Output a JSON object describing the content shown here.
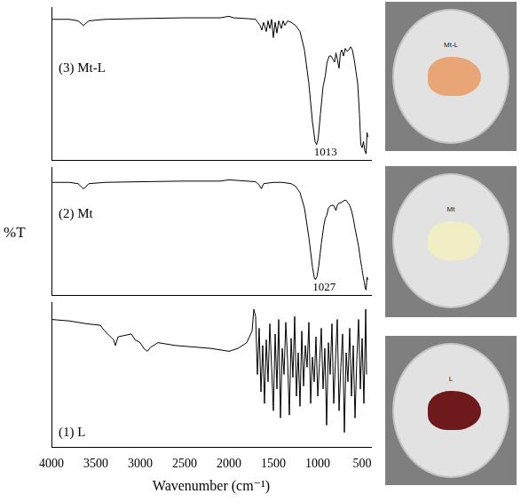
{
  "chart_data": [
    {
      "type": "line",
      "tick_labels": false,
      "grid": false,
      "xlim": [
        4000,
        400
      ],
      "ylim": [
        0,
        100
      ],
      "series": [
        {
          "name": "(3) Mt-L",
          "color": "#000000",
          "x": [
            4000,
            3800,
            3700,
            3640,
            3620,
            3580,
            3400,
            3000,
            2500,
            2100,
            2000,
            1950,
            1800,
            1700,
            1650,
            1630,
            1610,
            1580,
            1560,
            1540,
            1520,
            1500,
            1480,
            1460,
            1440,
            1410,
            1390,
            1370,
            1340,
            1300,
            1250,
            1200,
            1150,
            1100,
            1060,
            1030,
            1013,
            995,
            970,
            940,
            915,
            895,
            870,
            850,
            830,
            810,
            795,
            780,
            760,
            745,
            730,
            710,
            690,
            670,
            650,
            630,
            610,
            590,
            570,
            550,
            530,
            515,
            500,
            485,
            470,
            455,
            445,
            435
          ],
          "values": [
            92,
            92,
            91,
            88,
            89,
            91,
            92,
            92.5,
            93,
            93,
            94,
            93,
            92.5,
            92,
            88,
            85,
            90,
            84,
            91,
            86,
            92,
            80,
            90,
            83,
            91,
            86,
            91,
            88,
            91,
            90,
            88,
            84,
            72,
            50,
            25,
            12,
            10,
            14,
            30,
            48,
            55,
            64,
            68,
            68,
            66,
            64,
            70,
            66,
            60,
            70,
            72,
            68,
            73,
            71,
            72,
            74,
            72,
            66,
            58,
            50,
            30,
            10,
            8,
            12,
            6,
            4,
            18,
            15
          ]
        }
      ],
      "annotations": [
        {
          "text": "1013",
          "x": 1013
        }
      ]
    },
    {
      "type": "line",
      "tick_labels": false,
      "grid": false,
      "ylabel": "%T",
      "xlim": [
        4000,
        400
      ],
      "ylim": [
        0,
        100
      ],
      "series": [
        {
          "name": "(2) Mt",
          "color": "#000000",
          "x": [
            4000,
            3800,
            3700,
            3640,
            3620,
            3580,
            3400,
            3000,
            2500,
            2100,
            2000,
            1800,
            1700,
            1660,
            1635,
            1610,
            1500,
            1400,
            1300,
            1250,
            1200,
            1150,
            1100,
            1060,
            1040,
            1027,
            1010,
            990,
            960,
            930,
            915,
            900,
            880,
            850,
            820,
            795,
            780,
            760,
            740,
            720,
            700,
            680,
            660,
            640,
            620,
            600,
            580,
            560,
            540,
            520,
            505,
            490,
            475,
            465,
            455,
            445,
            435
          ],
          "values": [
            88,
            88,
            87,
            83,
            84,
            87,
            88,
            88.5,
            89,
            89,
            90,
            89,
            88.5,
            86,
            83,
            87,
            88,
            88,
            87,
            85,
            80,
            68,
            45,
            22,
            14,
            12,
            14,
            22,
            40,
            55,
            60,
            62,
            68,
            70,
            70,
            66,
            70,
            72,
            72,
            73,
            74,
            74,
            72,
            70,
            66,
            60,
            52,
            45,
            38,
            28,
            22,
            15,
            10,
            5,
            4,
            14,
            12
          ]
        }
      ],
      "annotations": [
        {
          "text": "1027",
          "x": 1027
        }
      ]
    },
    {
      "type": "line",
      "tick_labels": "x",
      "grid": false,
      "xlabel": "Wavenumber (cm⁻¹)",
      "xlim": [
        4000,
        400
      ],
      "ylim": [
        0,
        100
      ],
      "xticks": [
        4000,
        3500,
        3000,
        2500,
        2000,
        1500,
        1000,
        500
      ],
      "series": [
        {
          "name": "(1) L",
          "color": "#000000",
          "x": [
            4000,
            3800,
            3600,
            3450,
            3400,
            3300,
            3280,
            3250,
            3100,
            3060,
            3000,
            2960,
            2920,
            2880,
            2850,
            2800,
            2600,
            2400,
            2200,
            2000,
            1900,
            1800,
            1740,
            1720,
            1700,
            1680,
            1660,
            1640,
            1620,
            1600,
            1580,
            1560,
            1540,
            1520,
            1500,
            1480,
            1460,
            1440,
            1420,
            1400,
            1380,
            1360,
            1340,
            1320,
            1300,
            1280,
            1260,
            1240,
            1220,
            1200,
            1180,
            1160,
            1140,
            1120,
            1100,
            1080,
            1060,
            1040,
            1020,
            1000,
            980,
            960,
            940,
            920,
            900,
            880,
            860,
            840,
            820,
            800,
            780,
            760,
            740,
            720,
            700,
            680,
            660,
            640,
            620,
            600,
            580,
            560,
            540,
            520,
            500,
            480,
            460,
            450
          ],
          "values": [
            88,
            87,
            85,
            84,
            80,
            74,
            70,
            76,
            78,
            74,
            72,
            68,
            66,
            69,
            70,
            72,
            70,
            69,
            68,
            66,
            68,
            72,
            80,
            95,
            90,
            50,
            82,
            38,
            70,
            30,
            74,
            45,
            85,
            55,
            25,
            78,
            40,
            88,
            20,
            68,
            50,
            86,
            60,
            22,
            75,
            48,
            90,
            35,
            65,
            28,
            80,
            42,
            70,
            55,
            86,
            30,
            62,
            45,
            76,
            35,
            58,
            82,
            40,
            68,
            15,
            72,
            50,
            85,
            30,
            60,
            88,
            25,
            55,
            78,
            10,
            65,
            45,
            82,
            35,
            70,
            20,
            60,
            88,
            40,
            75,
            30,
            95,
            50
          ]
        }
      ],
      "annotations": []
    }
  ],
  "photos": [
    {
      "label": "Mt-L",
      "color": "#e8a676"
    },
    {
      "label": "Mt",
      "color": "#f1edc4"
    },
    {
      "label": "L",
      "color": "#6e1a1c"
    }
  ]
}
